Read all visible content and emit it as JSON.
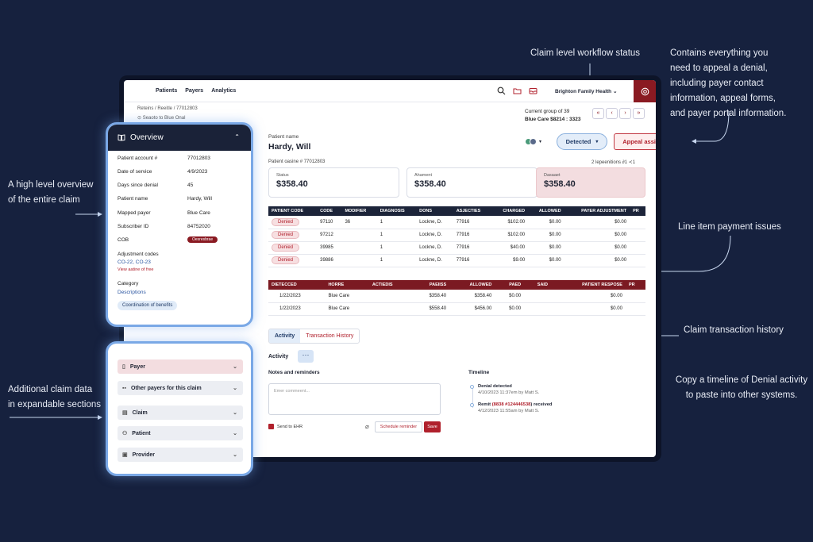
{
  "annotations": {
    "workflow_status": "Claim level workflow status",
    "appeal_help": [
      "Contains everything you",
      "need to appeal a denial,",
      "including payer contact",
      "information, appeal forms,",
      "and payer portal information."
    ],
    "overview": [
      "A high level overview",
      "of the entire claim"
    ],
    "line_items": "Line item payment issues",
    "transaction_history": "Claim transaction history",
    "timeline_copy": [
      "Copy a timeline of Denial activity",
      "to paste into other systems."
    ],
    "additional": [
      "Additional claim data",
      "in expandable sections"
    ]
  },
  "nav": {
    "links": [
      "Patients",
      "Payers",
      "Analytics"
    ],
    "icons": [
      "search-icon",
      "folder-icon",
      "inbox-icon"
    ],
    "org": "Brighton Family Health",
    "org_chevron": "⌄"
  },
  "header": {
    "breadcrumb": "Reteins / Reeitle / 77012803",
    "back": "Seaoto to Blue Onal",
    "group_line1": "Current group of 39",
    "group_line2": "Blue Care $8214 : 3323",
    "pager": [
      "«",
      "‹",
      "›",
      "»"
    ]
  },
  "patient": {
    "name_label": "Patient name",
    "name": "Hardy, Will",
    "claim_number": "Patient oasine # 77012803",
    "lines_count": "2 lepeenitions  ∂1  ≺1"
  },
  "status_button": "Detected",
  "appeal_button": "Appeal assistance",
  "cards": [
    {
      "label": "Status",
      "value": "$358.40"
    },
    {
      "label": "Ahament",
      "value": "$358.40"
    },
    {
      "label": "Dasaaet",
      "value": "$358.40"
    }
  ],
  "line_table": {
    "headers": [
      "PATIENT CODE",
      "CODE",
      "MODIFIER",
      "DIAGNOSIS",
      "DONS",
      "ASJECTIES",
      "CHARGED",
      "ALLOWED",
      "PAYER ADJUSTMENT",
      "PR"
    ],
    "rows": [
      [
        "Denied",
        "97110",
        "36",
        "1",
        "Lockne, D.",
        "77916",
        "$102.00",
        "$0.00",
        "$0.00"
      ],
      [
        "Denied",
        "97212",
        "",
        "1",
        "Lockne, D.",
        "77916",
        "$102.00",
        "$0.00",
        "$0.00"
      ],
      [
        "Denied",
        "39985",
        "",
        "1",
        "Lockne, D.",
        "77916",
        "$40.00",
        "$0.00",
        "$0.00"
      ],
      [
        "Denied",
        "39886",
        "",
        "1",
        "Lockne, D.",
        "77916",
        "$9.00",
        "$0.00",
        "$0.00"
      ]
    ]
  },
  "transaction_table": {
    "headers": [
      "DIETECCED",
      "HORRE",
      "ACTIEDIS",
      "PAEIISS",
      "ALLOWED",
      "PAED",
      "SAID",
      "PATIENT RESPOSE",
      "PR"
    ],
    "rows": [
      [
        "1/22/2023",
        "Blue Care",
        "",
        "$358.40",
        "$358.40",
        "$0.00",
        "",
        "$0.00"
      ],
      [
        "1/22/2023",
        "Blue Care",
        "",
        "$558.40",
        "$456.00",
        "$0.00",
        "",
        "$0.00"
      ]
    ]
  },
  "tabs": [
    "Activity",
    "Transaction History"
  ],
  "activity": {
    "title": "Activity",
    "more": "···",
    "notes_title": "Notes and reminders",
    "comment_placeholder": "Emer commeent...",
    "send_label": "Send to EHR",
    "schedule_label": "Schedule reminder",
    "save_label": "Save"
  },
  "timeline": {
    "title": "Timeline",
    "items": [
      {
        "title": "Denial detected",
        "highlight": "",
        "title_suffix": "",
        "sub": "4/10/2023  11:37em by Matt S."
      },
      {
        "title": "Remit ",
        "highlight": "(8838 #124446538",
        "title_suffix": ") received",
        "sub": "4/12/2023  11:55am by Matt S."
      }
    ]
  },
  "overview": {
    "title": "Overview",
    "rows": [
      {
        "label": "Patient account #",
        "value": "77012803"
      },
      {
        "label": "Date of service",
        "value": "4/9/2023"
      },
      {
        "label": "Days since denial",
        "value": "45"
      },
      {
        "label": "Patient name",
        "value": "Hardy, Will"
      },
      {
        "label": "Mapped payer",
        "value": "Blue Care"
      },
      {
        "label": "Subscriber ID",
        "value": "84752020"
      },
      {
        "label": "COB",
        "value": "Oesresbrae"
      }
    ],
    "adjustment_label": "Adjustment codes",
    "adjustment_codes": "CO-22, CO-23",
    "view_link": "View aatine of free",
    "category_label": "Category",
    "category_value": "Descriptions",
    "cob_pill": "Coordination of benefits"
  },
  "sections": [
    "Payer",
    "Other payers for this claim",
    "Claim",
    "Patient",
    "Provider"
  ],
  "colors": {
    "background": "#16213e",
    "dark": "#1c2439",
    "accent_red": "#b0202c",
    "accent_blue": "#7aa8e6"
  }
}
